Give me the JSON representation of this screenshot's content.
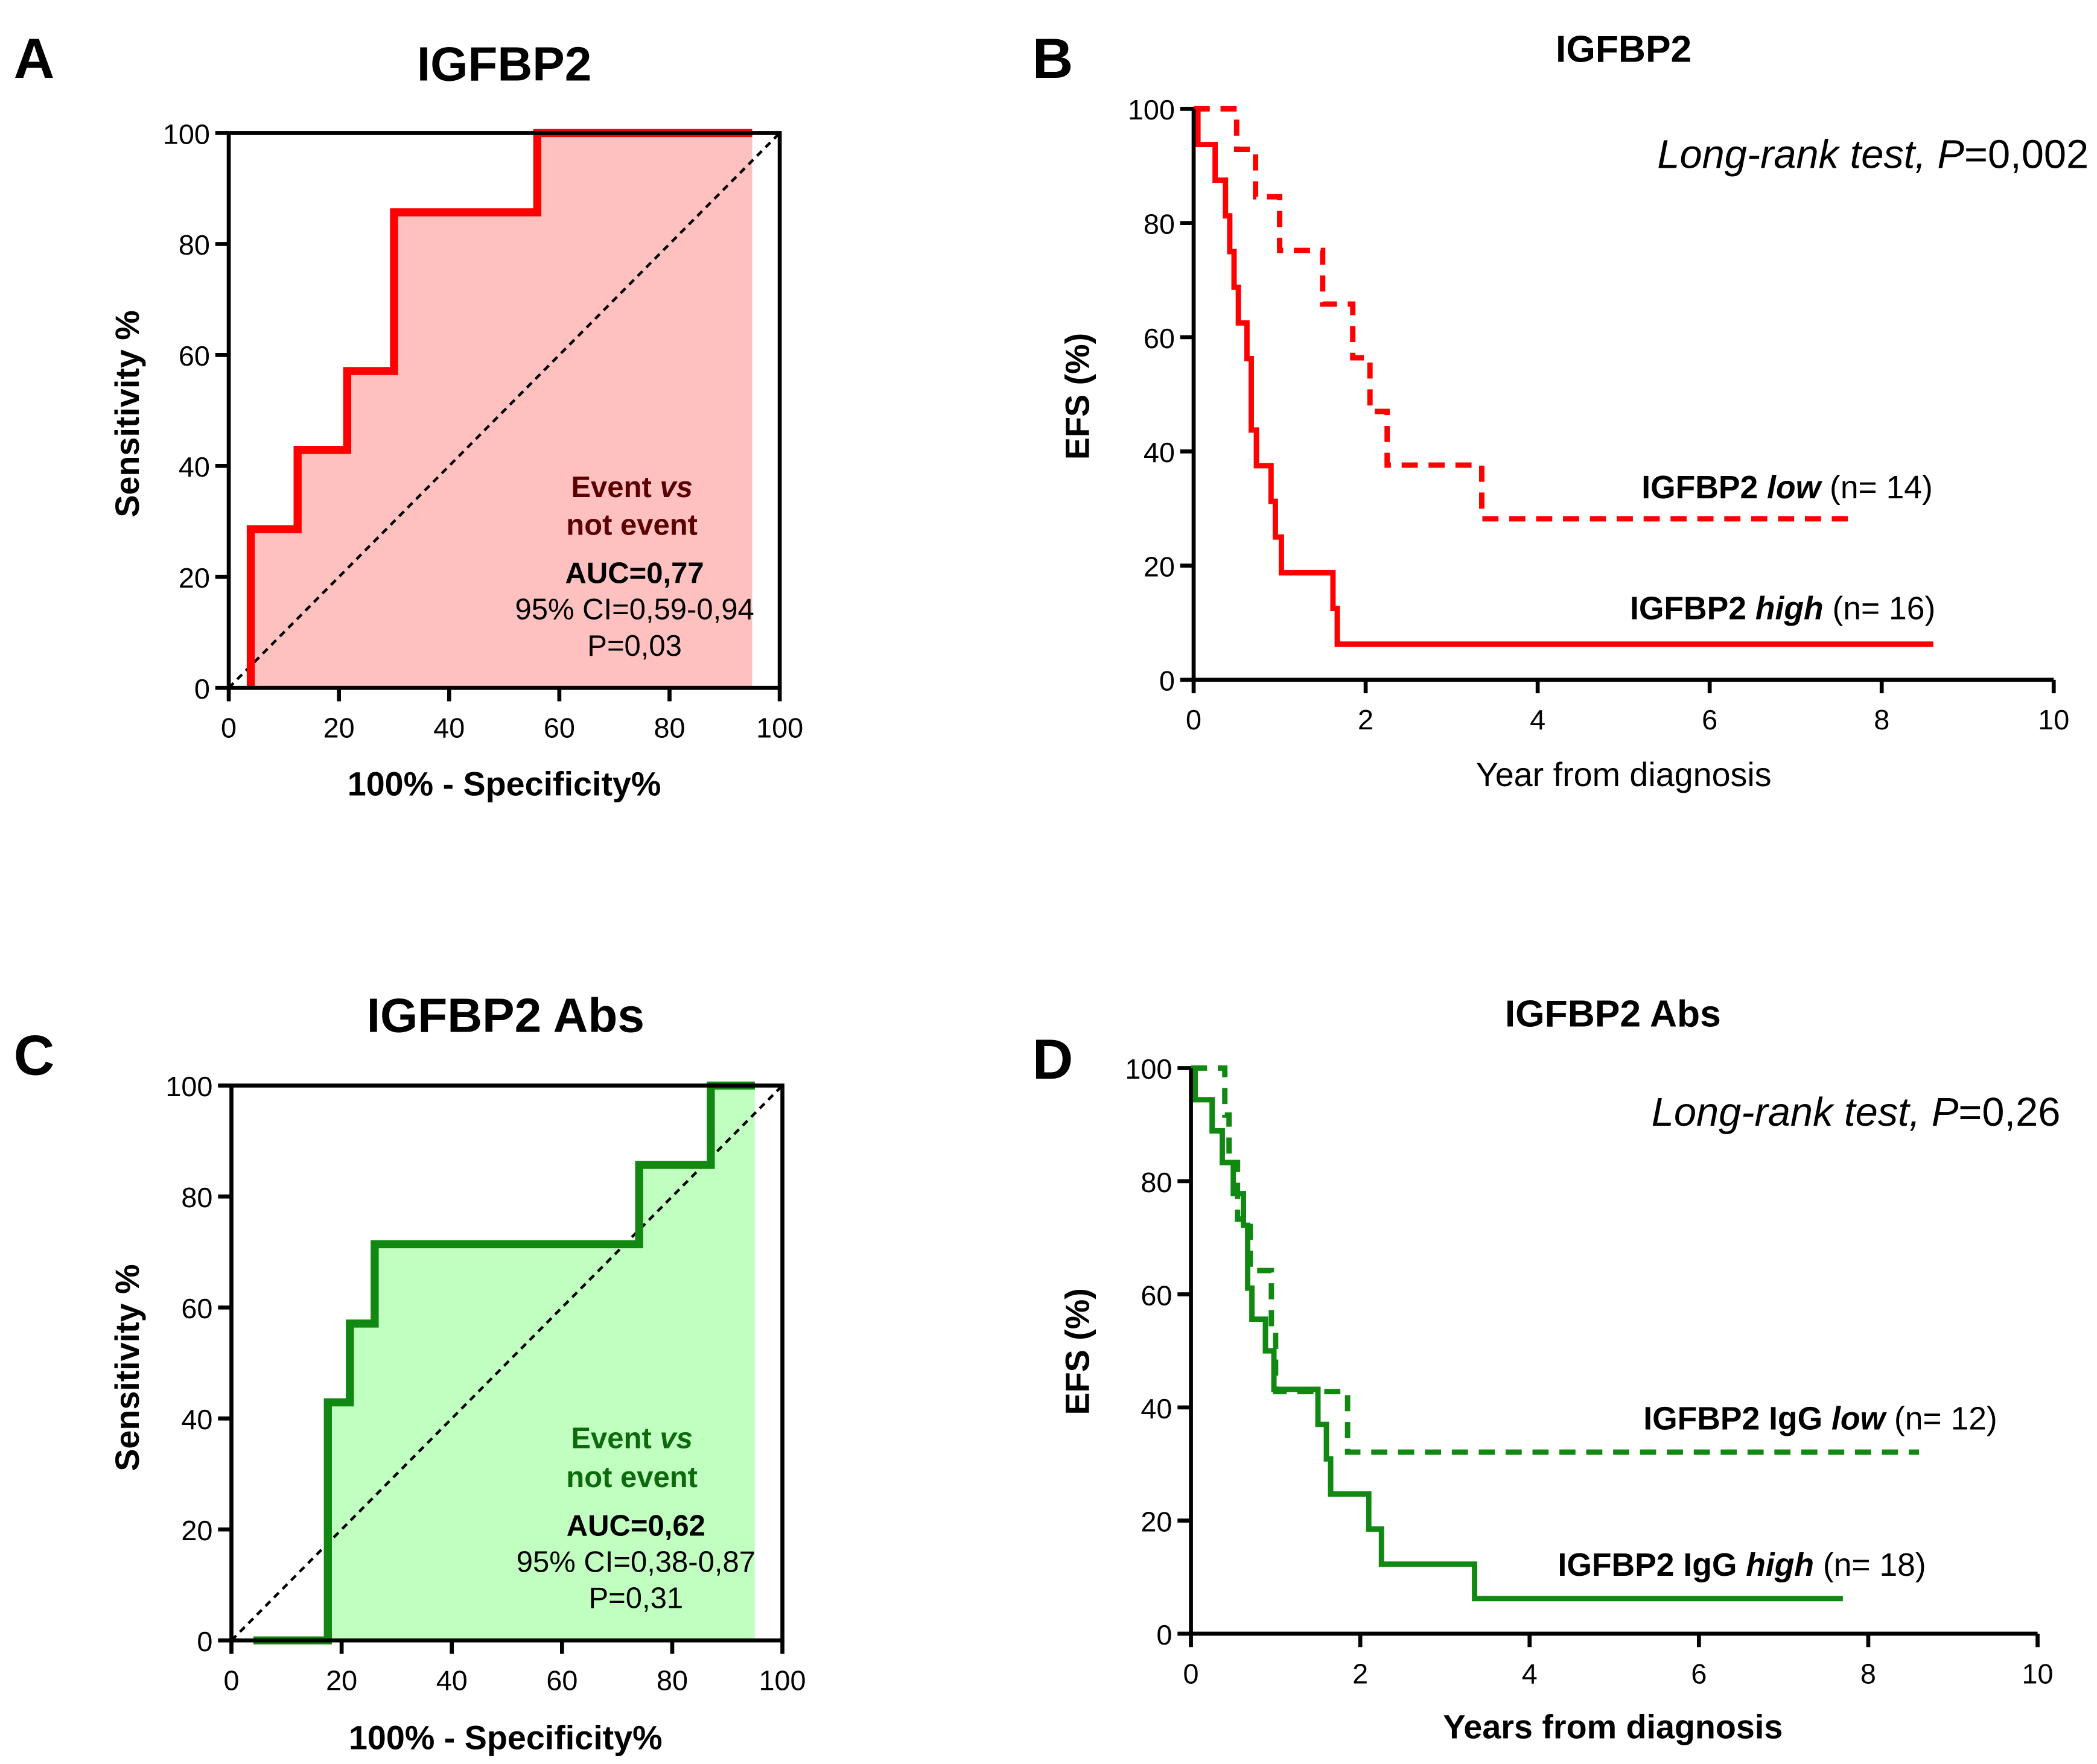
{
  "colors": {
    "red": "#ff0000",
    "red_fill": "#ffc0c0",
    "red_text": "#5a0000",
    "green": "#118811",
    "green_fill": "#c0ffc0",
    "green_text": "#0c6a0c",
    "axis": "#000000"
  },
  "chart_data": [
    {
      "panel": "A",
      "type": "line",
      "subtype": "roc",
      "title": "IGFBP2",
      "xlabel": "100% - Specificity%",
      "ylabel": "Sensitivity %",
      "xlim": [
        0,
        100
      ],
      "ylim": [
        0,
        100
      ],
      "xticks": [
        "0",
        "20",
        "40",
        "60",
        "80",
        "100"
      ],
      "yticks": [
        "0",
        "20",
        "40",
        "60",
        "80",
        "100"
      ],
      "series": [
        {
          "name": "ROC",
          "color": "red",
          "x": [
            4,
            4,
            12.5,
            12.5,
            21.5,
            21.5,
            30,
            30,
            56,
            56,
            95
          ],
          "y": [
            0,
            28.6,
            28.6,
            42.9,
            42.9,
            57.1,
            57.1,
            85.7,
            85.7,
            100,
            100
          ]
        }
      ],
      "annotation": {
        "line1": "Event ",
        "line1_italic": "vs",
        "line2": "not event",
        "auc": "AUC=0,77",
        "ci": "95% CI=0,59-0,94",
        "p": "P=0,03"
      }
    },
    {
      "panel": "B",
      "type": "line",
      "subtype": "kaplan-meier",
      "title": "IGFBP2",
      "xlabel": "Year from diagnosis",
      "ylabel": "EFS (%)",
      "xlim": [
        0,
        10
      ],
      "ylim": [
        0,
        100
      ],
      "xticks": [
        "0",
        "2",
        "4",
        "6",
        "8",
        "10"
      ],
      "yticks": [
        "0",
        "20",
        "40",
        "60",
        "80",
        "100"
      ],
      "test": {
        "text": "Long-rank test, ",
        "p_label": "P",
        "p_value": "=0,002"
      },
      "series": [
        {
          "name": "IGFBP2 low",
          "label_bold": "IGFBP2  ",
          "label_italic": "low",
          "label_n": " (n= 14)",
          "style": "dashed",
          "color": "red",
          "times": [
            0.5,
            0.72,
            1.0,
            1.5,
            1.85,
            2.05,
            2.25,
            3.35
          ],
          "survival": [
            92.9,
            84.6,
            75.2,
            65.8,
            56.4,
            47.0,
            37.6,
            28.2
          ],
          "end": 7.7
        },
        {
          "name": "IGFBP2 high",
          "label_bold": "IGFBP2 ",
          "label_italic": "high",
          "label_n": " (n= 16)",
          "style": "solid",
          "color": "red",
          "times": [
            0.05,
            0.25,
            0.37,
            0.42,
            0.47,
            0.52,
            0.62,
            0.67,
            0.73,
            0.9,
            0.95,
            1.02,
            1.62,
            1.67
          ],
          "survival": [
            93.75,
            87.5,
            81.25,
            75,
            68.75,
            62.5,
            56.25,
            43.75,
            37.5,
            31.25,
            25,
            18.75,
            12.5,
            6.25
          ],
          "end": 8.6
        }
      ]
    },
    {
      "panel": "C",
      "type": "line",
      "subtype": "roc",
      "title": "IGFBP2 Abs",
      "xlabel": "100% - Specificity%",
      "ylabel": "Sensitivity %",
      "xlim": [
        0,
        100
      ],
      "ylim": [
        0,
        100
      ],
      "xticks": [
        "0",
        "20",
        "40",
        "60",
        "80",
        "100"
      ],
      "yticks": [
        "0",
        "20",
        "40",
        "60",
        "80",
        "100"
      ],
      "series": [
        {
          "name": "ROC",
          "color": "green",
          "x": [
            4,
            17.5,
            17.5,
            21.5,
            21.5,
            26,
            26,
            74,
            74,
            87,
            87,
            95
          ],
          "y": [
            0,
            0,
            42.9,
            42.9,
            57.1,
            57.1,
            71.4,
            71.4,
            85.7,
            85.7,
            100,
            100
          ]
        }
      ],
      "annotation": {
        "line1": "Event ",
        "line1_italic": "vs",
        "line2": "not event",
        "auc": "AUC=0,62",
        "ci": "95% CI=0,38-0,87",
        "p": "P=0,31"
      }
    },
    {
      "panel": "D",
      "type": "line",
      "subtype": "kaplan-meier",
      "title": "IGFBP2 Abs",
      "xlabel": "Years from diagnosis",
      "ylabel": "EFS (%)",
      "xlim": [
        0,
        10
      ],
      "ylim": [
        0,
        100
      ],
      "xticks": [
        "0",
        "2",
        "4",
        "6",
        "8",
        "10"
      ],
      "yticks": [
        "0",
        "20",
        "40",
        "60",
        "80",
        "100"
      ],
      "test": {
        "text": "Long-rank test, ",
        "p_label": "P",
        "p_value": "=0,26"
      },
      "series": [
        {
          "name": "IGFBP2 IgG low",
          "label_bold": "IGFBP2 IgG ",
          "label_italic": "low",
          "label_n": " (n= 12)",
          "style": "dashed",
          "color": "green",
          "times": [
            0.4,
            0.45,
            0.55,
            0.7,
            0.95,
            1.0,
            1.85
          ],
          "survival": [
            91.7,
            83.3,
            73.3,
            64.2,
            53.5,
            42.8,
            32.1
          ],
          "end": 8.6
        },
        {
          "name": "IGFBP2 IgG high",
          "label_bold": "IGFBP2 IgG ",
          "label_italic": "high",
          "label_n": " (n= 18)",
          "style": "solid",
          "color": "green",
          "times": [
            0.05,
            0.25,
            0.37,
            0.5,
            0.62,
            0.67,
            0.72,
            0.88,
            0.98,
            1.5,
            1.6,
            1.65,
            2.1,
            2.25,
            3.35
          ],
          "survival": [
            94.4,
            88.9,
            83.3,
            77.8,
            72.2,
            61.1,
            55.6,
            50,
            43.2,
            37,
            30.9,
            24.7,
            18.5,
            12.3,
            6.2
          ],
          "end": 7.7
        }
      ]
    }
  ]
}
